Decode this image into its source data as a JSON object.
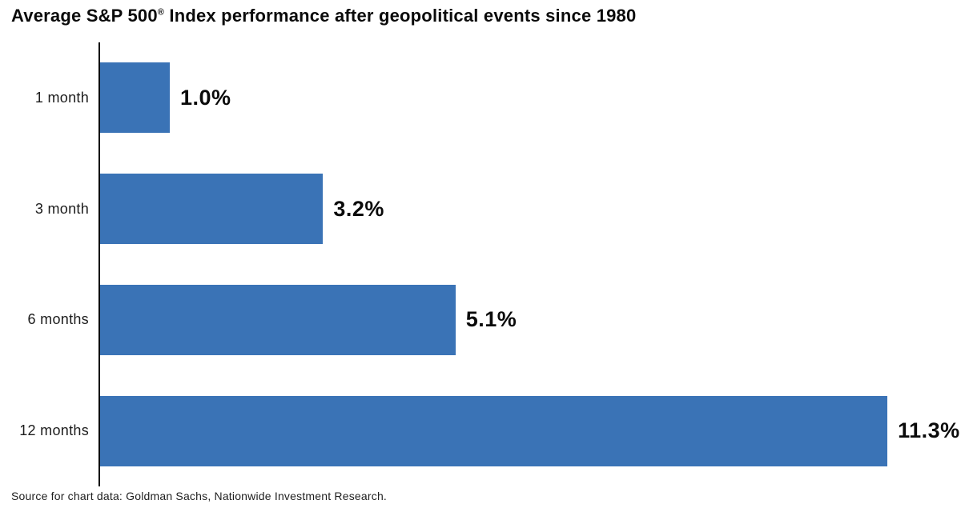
{
  "title": {
    "prefix": "Average S&P 500",
    "registered_mark": "®",
    "suffix": " Index performance after geopolitical events since 1980"
  },
  "source_note": "Source for chart data: Goldman Sachs, Nationwide Investment Research.",
  "chart_data": {
    "type": "bar",
    "orientation": "horizontal",
    "title": "Average S&P 500® Index performance after geopolitical events since 1980",
    "categories": [
      "1 month",
      "3 month",
      "6 months",
      "12 months"
    ],
    "values": [
      1.0,
      3.2,
      5.1,
      11.3
    ],
    "value_labels": [
      "1.0%",
      "3.2%",
      "5.1%",
      "11.3%"
    ],
    "xlabel": "",
    "ylabel": "",
    "xlim": [
      0,
      12.4
    ],
    "grid": false,
    "legend": null,
    "bar_color": "#3A73B6",
    "axis_color": "#000000",
    "label_color": "#1c1c1c",
    "value_label_color": "#0b0b0b",
    "source": "Source for chart data: Goldman Sachs, Nationwide Investment Research."
  }
}
